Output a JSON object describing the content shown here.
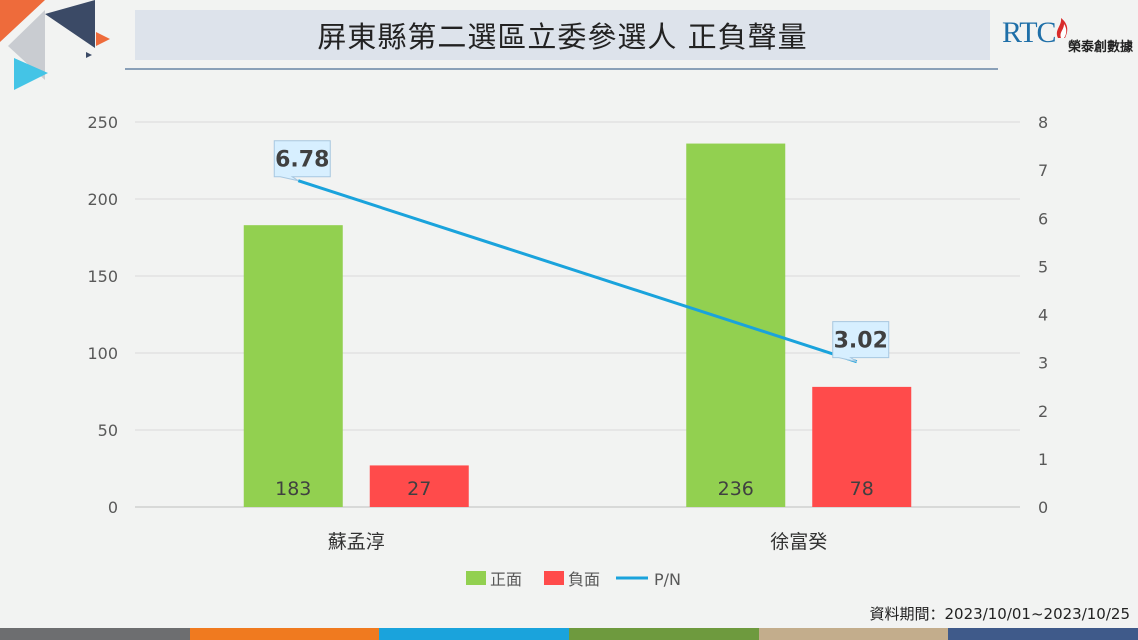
{
  "header": {
    "title": "屏東縣第二選區立委參選人 正負聲量",
    "logo_text": "RTC",
    "logo_name": "榮泰創數據"
  },
  "source_note": "資料期間：2023/10/01~2023/10/25",
  "colors": {
    "positive": "#92d050",
    "negative": "#ff4b4b",
    "ratio": "#1aa3dc",
    "footer": [
      "#6d6e70",
      "#f07a1f",
      "#1aa3dc",
      "#6e9a3e",
      "#c3ad8c",
      "#3f5a8a"
    ]
  },
  "chart_data": {
    "type": "bar",
    "categories": [
      "蘇孟淳",
      "徐富癸"
    ],
    "series": [
      {
        "name": "正面",
        "type": "bar",
        "axis": "left",
        "values": [
          183,
          236
        ],
        "labels": [
          "183",
          "236"
        ]
      },
      {
        "name": "負面",
        "type": "bar",
        "axis": "left",
        "values": [
          27,
          78
        ],
        "labels": [
          "27",
          "78"
        ]
      },
      {
        "name": "P/N",
        "type": "line",
        "axis": "right",
        "values": [
          6.78,
          3.02
        ],
        "labels": [
          "6.78",
          "3.02"
        ]
      }
    ],
    "ylim": [
      0,
      250
    ],
    "yticks": [
      "0",
      "50",
      "100",
      "150",
      "200",
      "250"
    ],
    "y2lim": [
      0,
      8
    ],
    "y2ticks": [
      "0",
      "1",
      "2",
      "3",
      "4",
      "5",
      "6",
      "7",
      "8"
    ],
    "grid": true,
    "legend_position": "bottom"
  }
}
